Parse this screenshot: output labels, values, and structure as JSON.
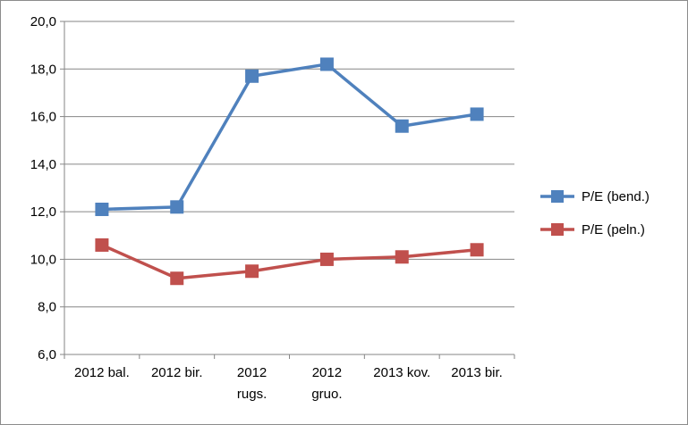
{
  "chart_data": {
    "type": "line",
    "categories": [
      [
        "2012 bal."
      ],
      [
        "2012 bir."
      ],
      [
        "2012",
        "rugs."
      ],
      [
        "2012",
        "gruo."
      ],
      [
        "2013 kov."
      ],
      [
        "2013 bir."
      ]
    ],
    "series": [
      {
        "name": "P/E (bend.)",
        "color": "#4F81BD",
        "marker": "square",
        "values": [
          12.1,
          12.2,
          17.7,
          18.2,
          15.6,
          16.1
        ]
      },
      {
        "name": "P/E (peln.)",
        "color": "#C0504D",
        "marker": "square",
        "values": [
          10.6,
          9.2,
          9.5,
          10.0,
          10.1,
          10.4
        ]
      }
    ],
    "ylim": [
      6,
      20
    ],
    "yticks": [
      "6,0",
      "8,0",
      "10,0",
      "12,0",
      "14,0",
      "16,0",
      "18,0",
      "20,0"
    ],
    "grid": true,
    "legend_position": "right",
    "title": "",
    "xlabel": "",
    "ylabel": ""
  }
}
